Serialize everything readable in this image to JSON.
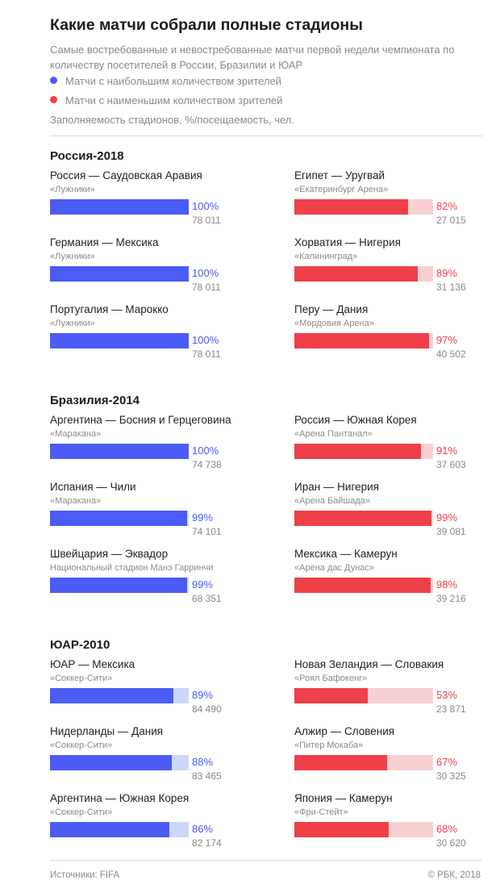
{
  "title": "Какие матчи собрали полные стадионы",
  "subtitle": "Самые востребованные и невостребованные матчи первой недели чемпионата по количеству посетителей в России, Бразилии и ЮАР",
  "legend": [
    {
      "label": "Матчи с наибольшим количеством зрителей",
      "color": "#4a5cf5"
    },
    {
      "label": "Матчи с наименьшим количеством зрителей",
      "color": "#ef3f49"
    }
  ],
  "unit_note": "Заполняемость стадионов, %/посещаемость, чел.",
  "colors": {
    "blue": "#4a5cf5",
    "blue_track": "#cdd7fb",
    "blue_text": "#4a5cf5",
    "red": "#ef3f49",
    "red_track": "#f8d0d2",
    "red_text": "#ef3f49"
  },
  "chart_data": {
    "type": "bar",
    "value_unit": "%",
    "xlim": [
      0,
      100
    ],
    "sections": [
      {
        "title": "Россия-2018",
        "most": [
          {
            "match": "Россия — Саудовская Аравия",
            "stadium": "«Лужники»",
            "value": 100,
            "label": "100%",
            "attendance": "78 011"
          },
          {
            "match": "Германия — Мексика",
            "stadium": "«Лужники»",
            "value": 100,
            "label": "100%",
            "attendance": "78 011"
          },
          {
            "match": "Португалия — Марокко",
            "stadium": "«Лужники»",
            "value": 100,
            "label": "100%",
            "attendance": "78 011"
          }
        ],
        "least": [
          {
            "match": "Египет — Уругвай",
            "stadium": "«Екатеринбург Арена»",
            "value": 82,
            "label": "82%",
            "attendance": "27 015"
          },
          {
            "match": "Хорватия — Нигерия",
            "stadium": "«Калининград»",
            "value": 89,
            "label": "89%",
            "attendance": "31 136"
          },
          {
            "match": "Перу — Дания",
            "stadium": "«Мордовия Арена»",
            "value": 97,
            "label": "97%",
            "attendance": "40 502"
          }
        ]
      },
      {
        "title": "Бразилия-2014",
        "most": [
          {
            "match": "Аргентина — Босния и Герцеговина",
            "stadium": "«Маракана»",
            "value": 100,
            "label": "100%",
            "attendance": "74 738"
          },
          {
            "match": "Испания — Чили",
            "stadium": "«Маракана»",
            "value": 99,
            "label": "99%",
            "attendance": "74 101"
          },
          {
            "match": "Швейцария — Эквадор",
            "stadium": "Национальный стадион Манэ Гарринчи",
            "value": 99,
            "label": "99%",
            "attendance": "68 351"
          }
        ],
        "least": [
          {
            "match": "Россия — Южная Корея",
            "stadium": "«Арена Пантанал»",
            "value": 91,
            "label": "91%",
            "attendance": "37 603"
          },
          {
            "match": "Иран — Нигерия",
            "stadium": "«Арена Байшада»",
            "value": 99,
            "label": "99%",
            "attendance": "39 081"
          },
          {
            "match": "Мексика — Камерун",
            "stadium": "«Арена дас Дунас»",
            "value": 98,
            "label": "98%",
            "attendance": "39 216"
          }
        ]
      },
      {
        "title": "ЮАР-2010",
        "most": [
          {
            "match": "ЮАР — Мексика",
            "stadium": "«Соккер-Сити»",
            "value": 89,
            "label": "89%",
            "attendance": "84 490"
          },
          {
            "match": "Нидерланды — Дания",
            "stadium": "«Соккер-Сити»",
            "value": 88,
            "label": "88%",
            "attendance": "83 465"
          },
          {
            "match": "Аргентина — Южная Корея",
            "stadium": "«Соккер-Сити»",
            "value": 86,
            "label": "86%",
            "attendance": "82 174"
          }
        ],
        "least": [
          {
            "match": "Новая Зеландия — Словакия",
            "stadium": "«Роял Бафокенг»",
            "value": 53,
            "label": "53%",
            "attendance": "23 871"
          },
          {
            "match": "Алжир — Словения",
            "stadium": "«Питер Мокаба»",
            "value": 67,
            "label": "67%",
            "attendance": "30 325"
          },
          {
            "match": "Япония — Камерун",
            "stadium": "«Фри-Стейт»",
            "value": 68,
            "label": "68%",
            "attendance": "30 620"
          }
        ]
      }
    ]
  },
  "footer": {
    "source": "Источники: FIFA",
    "copyright": "© РБК, 2018"
  }
}
